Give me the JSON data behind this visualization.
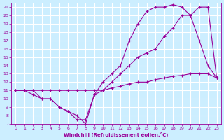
{
  "xlabel": "Windchill (Refroidissement éolien,°C)",
  "background_color": "#cceeff",
  "grid_color": "#ffffff",
  "line_color": "#990099",
  "xlim": [
    -0.5,
    23.5
  ],
  "ylim": [
    7,
    21.5
  ],
  "xticks": [
    0,
    1,
    2,
    3,
    4,
    5,
    6,
    7,
    8,
    9,
    10,
    11,
    12,
    13,
    14,
    15,
    16,
    17,
    18,
    19,
    20,
    21,
    22,
    23
  ],
  "yticks": [
    7,
    8,
    9,
    10,
    11,
    12,
    13,
    14,
    15,
    16,
    17,
    18,
    19,
    20,
    21
  ],
  "series": [
    {
      "x": [
        0,
        1,
        2,
        3,
        4,
        5,
        6,
        7,
        8,
        9,
        10,
        11,
        12,
        13,
        14,
        15,
        16,
        17,
        18,
        19,
        20,
        21,
        22,
        23
      ],
      "y": [
        11,
        11,
        11,
        10,
        10,
        9,
        8.5,
        7.5,
        7.5,
        10.5,
        12,
        13,
        14,
        17,
        19,
        20.5,
        21,
        21,
        21.3,
        21,
        20,
        17,
        14,
        12.5
      ]
    },
    {
      "x": [
        0,
        1,
        2,
        3,
        4,
        5,
        6,
        7,
        8,
        9,
        10,
        11,
        12,
        13,
        14,
        15,
        16,
        17,
        18,
        19,
        20,
        21,
        22,
        23
      ],
      "y": [
        11,
        11,
        10.5,
        10,
        10,
        9,
        8.5,
        8,
        7,
        10.5,
        11,
        12,
        13,
        14,
        15,
        15.5,
        16,
        17.5,
        18.5,
        20,
        20,
        21,
        21,
        12.5
      ]
    },
    {
      "x": [
        0,
        1,
        2,
        3,
        4,
        5,
        6,
        7,
        8,
        9,
        10,
        11,
        12,
        13,
        14,
        15,
        16,
        17,
        18,
        19,
        20,
        21,
        22,
        23
      ],
      "y": [
        11,
        11,
        11,
        11,
        11,
        11,
        11,
        11,
        11,
        11,
        11,
        11.3,
        11.5,
        11.8,
        12,
        12,
        12.3,
        12.5,
        12.7,
        12.8,
        13,
        13,
        13,
        12.5
      ]
    }
  ]
}
